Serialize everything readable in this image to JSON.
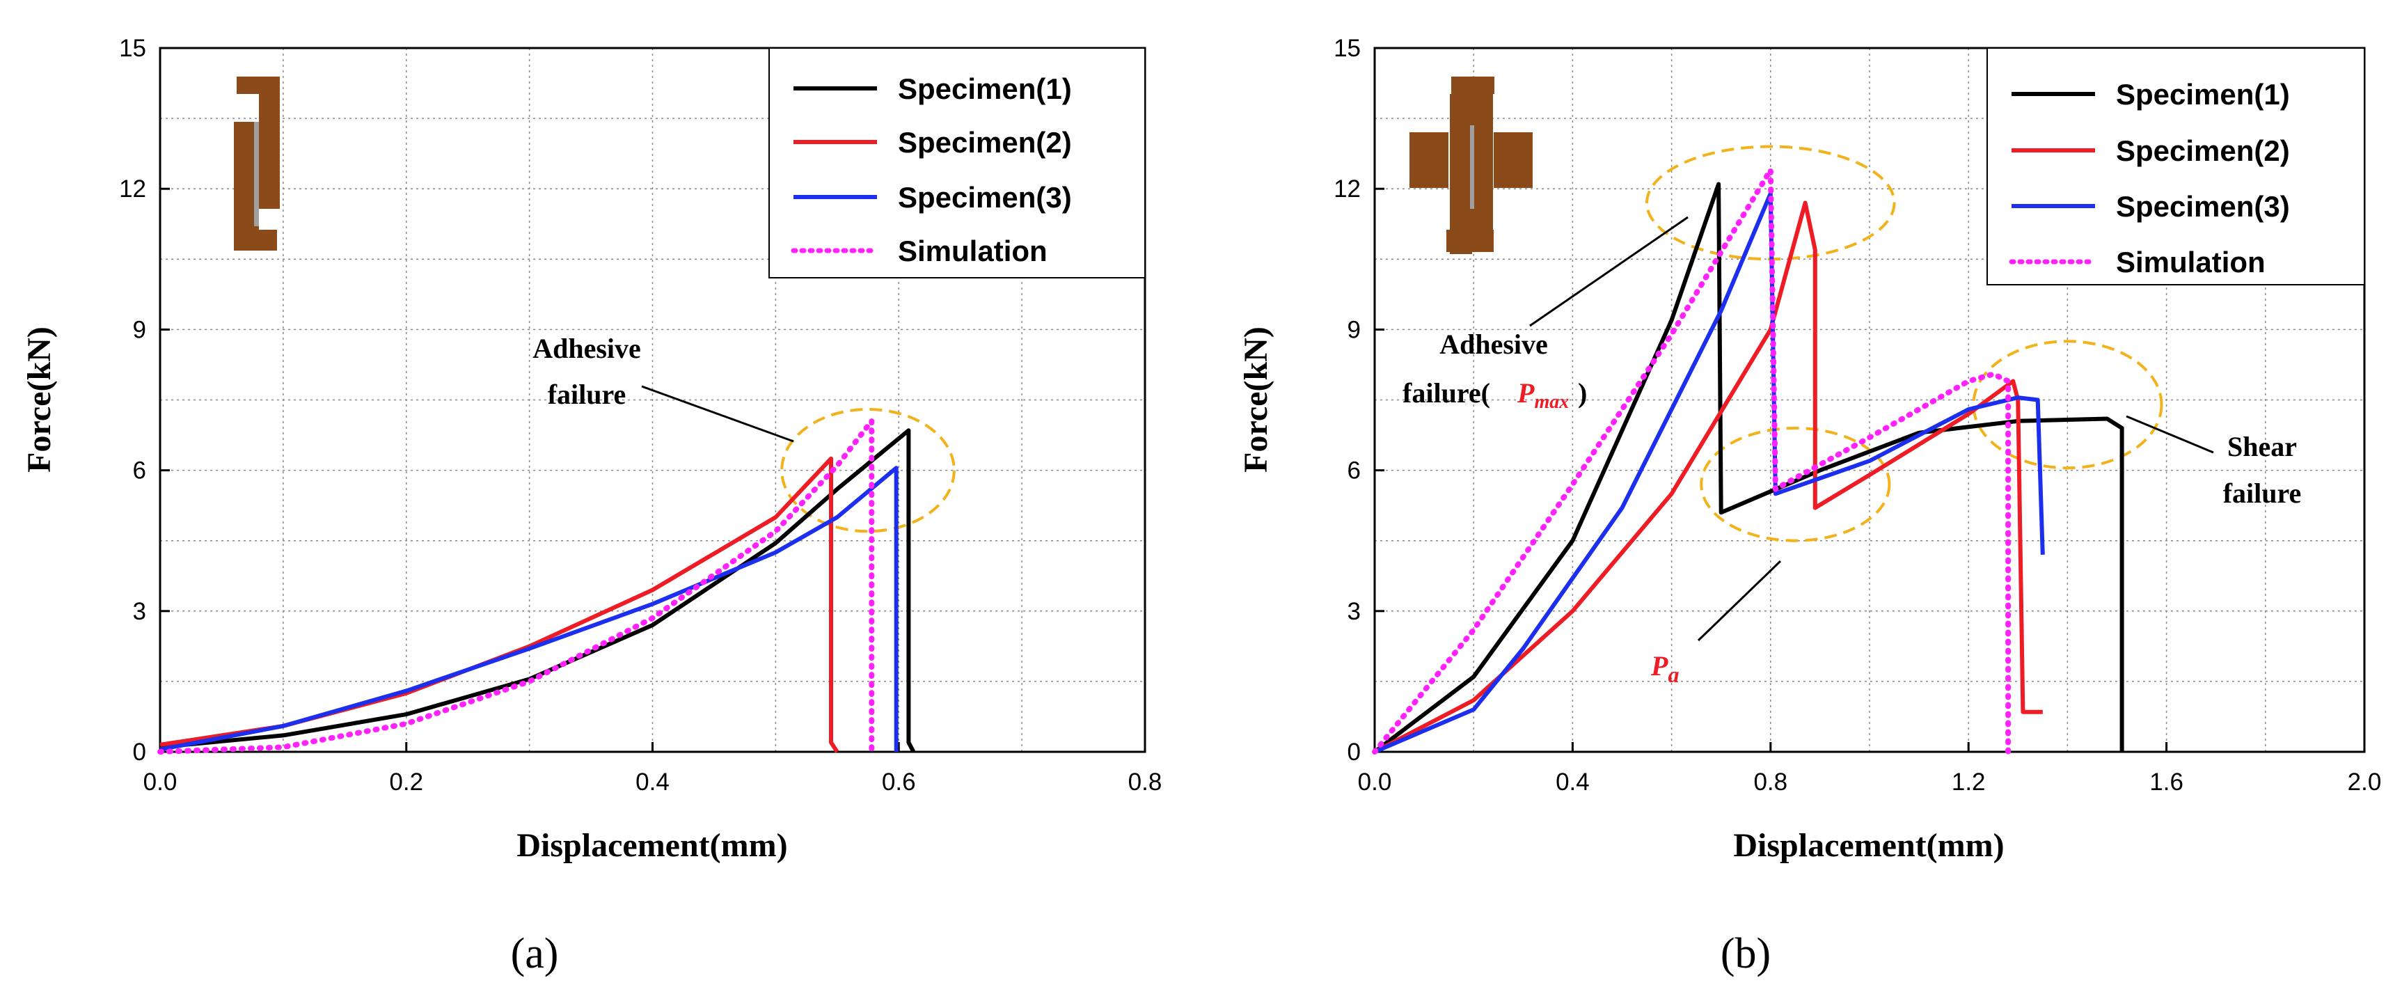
{
  "chart_data": [
    {
      "panel": "a",
      "type": "line",
      "caption": "(a)",
      "xlabel": "Displacement(mm)",
      "ylabel": "Force(kN)",
      "xlim": [
        0,
        0.8
      ],
      "ylim": [
        0,
        15
      ],
      "xticks": [
        "0.0",
        "0.2",
        "0.4",
        "0.6",
        "0.8"
      ],
      "yticks": [
        "0",
        "3",
        "6",
        "9",
        "12",
        "15"
      ],
      "xtick_values": [
        0,
        0.2,
        0.4,
        0.6,
        0.8
      ],
      "ytick_values": [
        0,
        3,
        6,
        9,
        12,
        15
      ],
      "grid": true,
      "legend_position": "top-right",
      "series": [
        {
          "name": "Specimen(1)",
          "color": "#000000",
          "dash": "solid",
          "points": [
            [
              0,
              0.1
            ],
            [
              0.1,
              0.35
            ],
            [
              0.2,
              0.8
            ],
            [
              0.3,
              1.55
            ],
            [
              0.4,
              2.7
            ],
            [
              0.5,
              4.45
            ],
            [
              0.55,
              5.6
            ],
            [
              0.608,
              6.85
            ],
            [
              0.608,
              0.2
            ],
            [
              0.612,
              0
            ]
          ]
        },
        {
          "name": "Specimen(2)",
          "color": "#ee1c25",
          "dash": "solid",
          "points": [
            [
              0,
              0.15
            ],
            [
              0.1,
              0.55
            ],
            [
              0.2,
              1.25
            ],
            [
              0.3,
              2.25
            ],
            [
              0.4,
              3.45
            ],
            [
              0.5,
              5.0
            ],
            [
              0.545,
              6.25
            ],
            [
              0.545,
              0.2
            ],
            [
              0.55,
              0
            ]
          ]
        },
        {
          "name": "Specimen(3)",
          "color": "#1c2fee",
          "dash": "solid",
          "points": [
            [
              0,
              0.05
            ],
            [
              0.1,
              0.55
            ],
            [
              0.2,
              1.3
            ],
            [
              0.3,
              2.2
            ],
            [
              0.4,
              3.15
            ],
            [
              0.5,
              4.25
            ],
            [
              0.55,
              5.0
            ],
            [
              0.598,
              6.05
            ],
            [
              0.598,
              0
            ]
          ]
        },
        {
          "name": "Simulation",
          "color": "#ff22ff",
          "dash": "dotted",
          "points": [
            [
              0,
              0
            ],
            [
              0.1,
              0.1
            ],
            [
              0.2,
              0.6
            ],
            [
              0.3,
              1.5
            ],
            [
              0.4,
              2.85
            ],
            [
              0.5,
              4.7
            ],
            [
              0.55,
              6.1
            ],
            [
              0.578,
              7.05
            ],
            [
              0.578,
              0
            ]
          ]
        }
      ],
      "annotations": [
        {
          "text_lines": [
            "Adhesive",
            "failure"
          ],
          "x": 0.4,
          "y": 7.8
        }
      ],
      "highlight_ellipses": [
        {
          "cx": 0.575,
          "cy": 6.0,
          "rx": 0.07,
          "ry": 1.3
        }
      ]
    },
    {
      "panel": "b",
      "type": "line",
      "caption": "(b)",
      "xlabel": "Displacement(mm)",
      "ylabel": "Force(kN)",
      "xlim": [
        0,
        2.0
      ],
      "ylim": [
        0,
        15
      ],
      "xticks": [
        "0.0",
        "0.4",
        "0.8",
        "1.2",
        "1.6",
        "2.0"
      ],
      "yticks": [
        "0",
        "3",
        "6",
        "9",
        "12",
        "15"
      ],
      "xtick_values": [
        0,
        0.4,
        0.8,
        1.2,
        1.6,
        2.0
      ],
      "ytick_values": [
        0,
        3,
        6,
        9,
        12,
        15
      ],
      "grid": true,
      "legend_position": "top-right",
      "series": [
        {
          "name": "Specimen(1)",
          "color": "#000000",
          "dash": "solid",
          "points": [
            [
              0,
              0
            ],
            [
              0.2,
              1.6
            ],
            [
              0.4,
              4.5
            ],
            [
              0.6,
              9.2
            ],
            [
              0.695,
              12.1
            ],
            [
              0.7,
              5.1
            ],
            [
              0.9,
              6.0
            ],
            [
              1.1,
              6.8
            ],
            [
              1.3,
              7.05
            ],
            [
              1.48,
              7.1
            ],
            [
              1.51,
              6.9
            ],
            [
              1.51,
              0
            ]
          ]
        },
        {
          "name": "Specimen(2)",
          "color": "#ee1c25",
          "dash": "solid",
          "points": [
            [
              0,
              0
            ],
            [
              0.2,
              1.1
            ],
            [
              0.4,
              3.0
            ],
            [
              0.6,
              5.5
            ],
            [
              0.8,
              9.0
            ],
            [
              0.87,
              11.7
            ],
            [
              0.89,
              10.7
            ],
            [
              0.89,
              5.2
            ],
            [
              1.0,
              5.9
            ],
            [
              1.2,
              7.2
            ],
            [
              1.29,
              7.9
            ],
            [
              1.3,
              7.5
            ],
            [
              1.31,
              0.85
            ],
            [
              1.35,
              0.85
            ]
          ]
        },
        {
          "name": "Specimen(3)",
          "color": "#1c2fee",
          "dash": "solid",
          "points": [
            [
              0,
              0
            ],
            [
              0.2,
              0.9
            ],
            [
              0.3,
              2.2
            ],
            [
              0.5,
              5.2
            ],
            [
              0.7,
              9.4
            ],
            [
              0.8,
              11.9
            ],
            [
              0.81,
              5.5
            ],
            [
              1.0,
              6.2
            ],
            [
              1.2,
              7.3
            ],
            [
              1.3,
              7.55
            ],
            [
              1.34,
              7.5
            ],
            [
              1.35,
              4.2
            ]
          ]
        },
        {
          "name": "Simulation",
          "color": "#ff22ff",
          "dash": "dotted",
          "points": [
            [
              0,
              0
            ],
            [
              0.2,
              2.6
            ],
            [
              0.4,
              5.7
            ],
            [
              0.6,
              8.9
            ],
            [
              0.8,
              12.4
            ],
            [
              0.81,
              5.6
            ],
            [
              1.0,
              6.7
            ],
            [
              1.2,
              7.9
            ],
            [
              1.25,
              8.05
            ],
            [
              1.28,
              7.9
            ],
            [
              1.28,
              0
            ]
          ]
        }
      ],
      "annotations": [
        {
          "text_lines": [
            "Adhesive",
            "failure("
          ],
          "sub_label": "P",
          "sub_label_sub": "max",
          "x": 0.68,
          "y": 8.8
        },
        {
          "text_lines": [
            "Shear",
            "failure"
          ],
          "x": 1.7,
          "y": 6.3
        },
        {
          "text_lines": [],
          "sub_label": "P",
          "sub_label_sub": "a",
          "x": 0.58,
          "y": 1.9
        }
      ],
      "highlight_ellipses": [
        {
          "cx": 0.8,
          "cy": 11.7,
          "rx": 0.25,
          "ry": 1.2
        },
        {
          "cx": 0.85,
          "cy": 5.7,
          "rx": 0.19,
          "ry": 1.2
        },
        {
          "cx": 1.4,
          "cy": 7.4,
          "rx": 0.19,
          "ry": 1.35
        }
      ]
    }
  ],
  "colors": {
    "specimen1": "#000000",
    "specimen2": "#ee1c25",
    "specimen3": "#1c2fee",
    "simulation": "#ff22ff",
    "highlight": "#f2b21b",
    "part": "#8b4a1a"
  }
}
